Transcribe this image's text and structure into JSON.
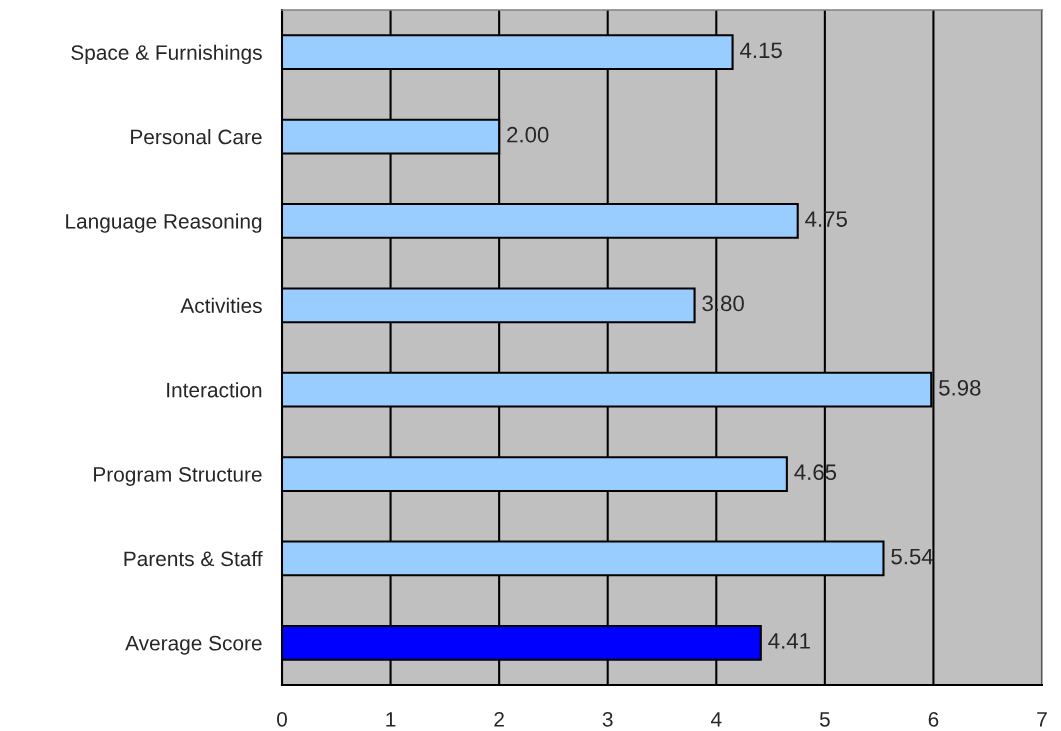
{
  "chart_data": {
    "type": "bar",
    "orientation": "horizontal",
    "categories": [
      "Space & Furnishings",
      "Personal Care",
      "Language Reasoning",
      "Activities",
      "Interaction",
      "Program Structure",
      "Parents & Staff",
      "Average Score"
    ],
    "values": [
      4.15,
      2.0,
      4.75,
      3.8,
      5.98,
      4.65,
      5.54,
      4.41
    ],
    "colors": [
      "#99ccff",
      "#99ccff",
      "#99ccff",
      "#99ccff",
      "#99ccff",
      "#99ccff",
      "#99ccff",
      "#0000ff"
    ],
    "value_labels": [
      "4.15",
      "2.00",
      "4.75",
      "3.80",
      "5.98",
      "4.65",
      "5.54",
      "4.41"
    ],
    "xlim": [
      0,
      7
    ],
    "xticks": [
      0,
      1,
      2,
      3,
      4,
      5,
      6,
      7
    ],
    "grid": "x"
  }
}
